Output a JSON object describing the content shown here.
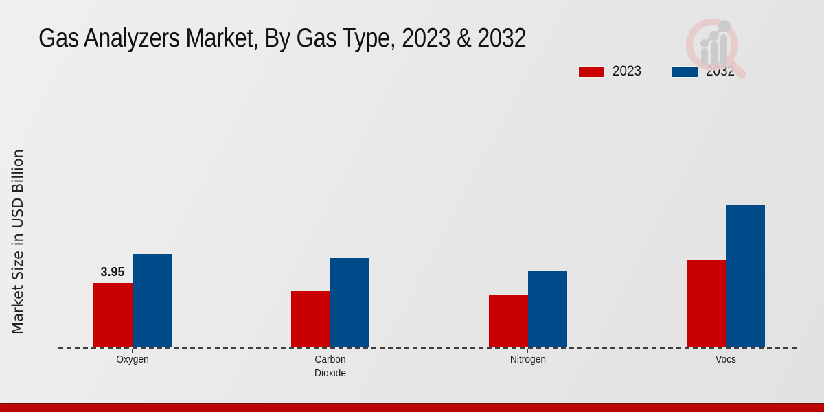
{
  "chart_data": {
    "type": "bar",
    "title": "Gas Analyzers Market, By Gas Type, 2023 & 2032",
    "xlabel": "",
    "ylabel": "Market Size in USD Billion",
    "categories": [
      "Oxygen",
      "Carbon Dioxide",
      "Nitrogen",
      "Vocs"
    ],
    "series": [
      {
        "name": "2023",
        "color": "#c90001",
        "values": [
          3.95,
          3.45,
          3.24,
          5.34
        ]
      },
      {
        "name": "2032",
        "color": "#004a8a",
        "values": [
          5.71,
          5.5,
          4.71,
          8.74
        ]
      }
    ],
    "data_labels": [
      {
        "series": "2023",
        "category": "Oxygen",
        "text": "3.95"
      }
    ],
    "ylim": [
      0,
      10
    ],
    "grid": false,
    "legend_position": "top-right",
    "baseline_style": "dashed",
    "y_axis_ticks_visible": false
  },
  "legend": [
    {
      "label": "2023",
      "color": "#c90001"
    },
    {
      "label": "2032",
      "color": "#004a8a"
    }
  ],
  "logo": {
    "name": "magnifier-bar-chart-watermark",
    "ring_color": "#e8caca",
    "glyph_color": "#c9c9c9"
  },
  "footer": {
    "bar_color": "#bb0605",
    "border_color": "#6e1212"
  }
}
